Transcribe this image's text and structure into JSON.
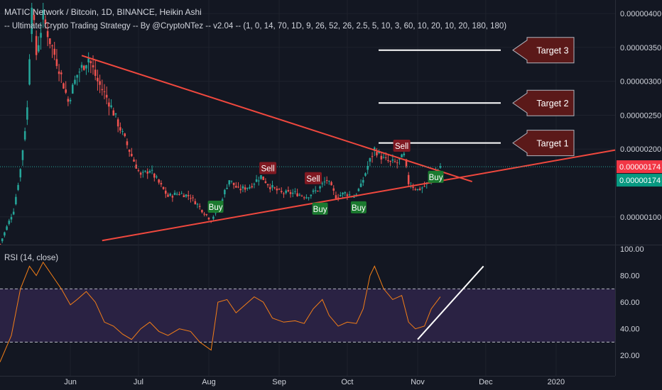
{
  "header": {
    "symbol_line": "MATIC Network / Bitcoin, 1D, BINANCE, Heikin Ashi",
    "strategy_line": "-- Ultimate Crypto Trading Strategy -- By @CryptoNTez -- v2.04 -- (1, 0, 14, 70, 1D, 9, 26, 52, 26, 2.5, 5, 10, 3, 60, 10, 20, 10, 20, 180, 180)"
  },
  "chart_data": [
    {
      "type": "candlestick",
      "title": "",
      "y_axis_ticks": [
        "0.00000400",
        "0.00000350",
        "0.00000300",
        "0.00000250",
        "0.00000200",
        "0.00000100"
      ],
      "ylim": [
        6e-07,
        4.2e-06
      ],
      "x_axis_ticks": [
        "Jun",
        "Jul",
        "Aug",
        "Sep",
        "Oct",
        "Nov",
        "Dec",
        "2020"
      ],
      "last_price": "0.00000174",
      "last_price_second": "0.00000174",
      "price_path": [
        {
          "date": "2019-05-01",
          "close": 6e-07
        },
        {
          "date": "2019-05-07",
          "close": 1.1e-06
        },
        {
          "date": "2019-05-10",
          "close": 1.7e-06
        },
        {
          "date": "2019-05-13",
          "close": 2.6e-06
        },
        {
          "date": "2019-05-15",
          "close": 4.2e-06
        },
        {
          "date": "2019-05-17",
          "close": 3.4e-06
        },
        {
          "date": "2019-05-20",
          "close": 3.95e-06
        },
        {
          "date": "2019-05-23",
          "close": 3.6e-06
        },
        {
          "date": "2019-05-27",
          "close": 3.2e-06
        },
        {
          "date": "2019-05-31",
          "close": 2.7e-06
        },
        {
          "date": "2019-06-04",
          "close": 3.1e-06
        },
        {
          "date": "2019-06-09",
          "close": 3.35e-06
        },
        {
          "date": "2019-06-13",
          "close": 3e-06
        },
        {
          "date": "2019-06-18",
          "close": 2.7e-06
        },
        {
          "date": "2019-06-23",
          "close": 2.3e-06
        },
        {
          "date": "2019-06-28",
          "close": 1.9e-06
        },
        {
          "date": "2019-07-02",
          "close": 1.6e-06
        },
        {
          "date": "2019-07-06",
          "close": 1.7e-06
        },
        {
          "date": "2019-07-10",
          "close": 1.5e-06
        },
        {
          "date": "2019-07-14",
          "close": 1.3e-06
        },
        {
          "date": "2019-07-19",
          "close": 1.35e-06
        },
        {
          "date": "2019-07-24",
          "close": 1.3e-06
        },
        {
          "date": "2019-07-29",
          "close": 1.1e-06
        },
        {
          "date": "2019-08-02",
          "close": 9.5e-07
        },
        {
          "date": "2019-08-06",
          "close": 1.2e-06
        },
        {
          "date": "2019-08-10",
          "close": 1.55e-06
        },
        {
          "date": "2019-08-14",
          "close": 1.4e-06
        },
        {
          "date": "2019-08-19",
          "close": 1.45e-06
        },
        {
          "date": "2019-08-24",
          "close": 1.6e-06
        },
        {
          "date": "2019-08-28",
          "close": 1.45e-06
        },
        {
          "date": "2019-09-02",
          "close": 1.35e-06
        },
        {
          "date": "2019-09-08",
          "close": 1.35e-06
        },
        {
          "date": "2019-09-13",
          "close": 1.3e-06
        },
        {
          "date": "2019-09-18",
          "close": 1.4e-06
        },
        {
          "date": "2019-09-22",
          "close": 1.55e-06
        },
        {
          "date": "2019-09-26",
          "close": 1.3e-06
        },
        {
          "date": "2019-09-30",
          "close": 1.35e-06
        },
        {
          "date": "2019-10-04",
          "close": 1.3e-06
        },
        {
          "date": "2019-10-07",
          "close": 1.45e-06
        },
        {
          "date": "2019-10-10",
          "close": 1.75e-06
        },
        {
          "date": "2019-10-13",
          "close": 2e-06
        },
        {
          "date": "2019-10-17",
          "close": 1.85e-06
        },
        {
          "date": "2019-10-20",
          "close": 1.8e-06
        },
        {
          "date": "2019-10-23",
          "close": 1.8e-06
        },
        {
          "date": "2019-10-26",
          "close": 1.9e-06
        },
        {
          "date": "2019-10-28",
          "close": 1.5e-06
        },
        {
          "date": "2019-11-01",
          "close": 1.4e-06
        },
        {
          "date": "2019-11-04",
          "close": 1.45e-06
        },
        {
          "date": "2019-11-08",
          "close": 1.6e-06
        },
        {
          "date": "2019-11-11",
          "close": 1.75e-06
        }
      ],
      "signals": [
        {
          "date": "2019-08-04",
          "label": "Buy",
          "price": 1.15e-06
        },
        {
          "date": "2019-08-27",
          "label": "Sell",
          "price": 1.72e-06
        },
        {
          "date": "2019-09-16",
          "label": "Sell",
          "price": 1.57e-06
        },
        {
          "date": "2019-09-19",
          "label": "Buy",
          "price": 1.12e-06
        },
        {
          "date": "2019-10-06",
          "label": "Buy",
          "price": 1.14e-06
        },
        {
          "date": "2019-10-25",
          "label": "Sell",
          "price": 2.05e-06
        },
        {
          "date": "2019-11-09",
          "label": "Buy",
          "price": 1.59e-06
        }
      ],
      "trendlines": [
        {
          "from": {
            "date": "2019-06-06",
            "price": 3.38e-06
          },
          "to": {
            "date": "2019-11-25",
            "price": 1.52e-06
          }
        },
        {
          "from": {
            "date": "2019-06-15",
            "price": 6.5e-07
          },
          "to": {
            "date": "2019-12-25",
            "price": 1.79e-06
          }
        }
      ],
      "targets": [
        {
          "label": "Target 3",
          "price": 3.46e-06
        },
        {
          "label": "Target 2",
          "price": 2.68e-06
        },
        {
          "label": "Target 1",
          "price": 2.09e-06
        }
      ]
    },
    {
      "type": "line",
      "title": "RSI (14, close)",
      "y_axis_ticks": [
        "100.00",
        "80.00",
        "60.00",
        "40.00",
        "20.00"
      ],
      "ylim": [
        10,
        100
      ],
      "bands": [
        30,
        70
      ],
      "points": [
        {
          "date": "2019-05-01",
          "rsi": 15
        },
        {
          "date": "2019-05-06",
          "rsi": 35
        },
        {
          "date": "2019-05-10",
          "rsi": 70
        },
        {
          "date": "2019-05-14",
          "rsi": 87
        },
        {
          "date": "2019-05-17",
          "rsi": 80
        },
        {
          "date": "2019-05-20",
          "rsi": 90
        },
        {
          "date": "2019-05-24",
          "rsi": 80
        },
        {
          "date": "2019-05-28",
          "rsi": 70
        },
        {
          "date": "2019-06-01",
          "rsi": 58
        },
        {
          "date": "2019-06-04",
          "rsi": 62
        },
        {
          "date": "2019-06-08",
          "rsi": 68
        },
        {
          "date": "2019-06-12",
          "rsi": 60
        },
        {
          "date": "2019-06-16",
          "rsi": 45
        },
        {
          "date": "2019-06-20",
          "rsi": 42
        },
        {
          "date": "2019-06-24",
          "rsi": 36
        },
        {
          "date": "2019-06-28",
          "rsi": 32
        },
        {
          "date": "2019-07-02",
          "rsi": 40
        },
        {
          "date": "2019-07-06",
          "rsi": 45
        },
        {
          "date": "2019-07-10",
          "rsi": 38
        },
        {
          "date": "2019-07-14",
          "rsi": 35
        },
        {
          "date": "2019-07-19",
          "rsi": 40
        },
        {
          "date": "2019-07-24",
          "rsi": 38
        },
        {
          "date": "2019-07-28",
          "rsi": 30
        },
        {
          "date": "2019-08-02",
          "rsi": 24
        },
        {
          "date": "2019-08-05",
          "rsi": 60
        },
        {
          "date": "2019-08-09",
          "rsi": 62
        },
        {
          "date": "2019-08-13",
          "rsi": 52
        },
        {
          "date": "2019-08-17",
          "rsi": 58
        },
        {
          "date": "2019-08-21",
          "rsi": 64
        },
        {
          "date": "2019-08-25",
          "rsi": 60
        },
        {
          "date": "2019-08-29",
          "rsi": 48
        },
        {
          "date": "2019-09-03",
          "rsi": 45
        },
        {
          "date": "2019-09-08",
          "rsi": 46
        },
        {
          "date": "2019-09-12",
          "rsi": 44
        },
        {
          "date": "2019-09-16",
          "rsi": 55
        },
        {
          "date": "2019-09-20",
          "rsi": 62
        },
        {
          "date": "2019-09-23",
          "rsi": 50
        },
        {
          "date": "2019-09-27",
          "rsi": 42
        },
        {
          "date": "2019-10-01",
          "rsi": 45
        },
        {
          "date": "2019-10-05",
          "rsi": 44
        },
        {
          "date": "2019-10-08",
          "rsi": 55
        },
        {
          "date": "2019-10-11",
          "rsi": 80
        },
        {
          "date": "2019-10-13",
          "rsi": 87
        },
        {
          "date": "2019-10-17",
          "rsi": 70
        },
        {
          "date": "2019-10-21",
          "rsi": 62
        },
        {
          "date": "2019-10-25",
          "rsi": 65
        },
        {
          "date": "2019-10-28",
          "rsi": 45
        },
        {
          "date": "2019-10-31",
          "rsi": 40
        },
        {
          "date": "2019-11-04",
          "rsi": 42
        },
        {
          "date": "2019-11-07",
          "rsi": 55
        },
        {
          "date": "2019-11-11",
          "rsi": 64
        }
      ],
      "trendline": {
        "from": {
          "date": "2019-11-01",
          "rsi": 32
        },
        "to": {
          "date": "2019-11-30",
          "rsi": 87
        }
      }
    }
  ],
  "colors": {
    "background": "#131722",
    "up": "#26a69a",
    "down": "#ef5350",
    "trendline": "#f0483e",
    "target_bg": "#5b1919",
    "target_border": "#b2b5be",
    "sell_bg": "#801922",
    "buy_bg": "#1b7a2f",
    "rsi_line": "#f57f17",
    "rsi_band": "#2a2243",
    "price_label": "#f23645",
    "price_label_second": "#089981",
    "grid": "#1e222d",
    "axis_text": "#d1d4dc"
  }
}
